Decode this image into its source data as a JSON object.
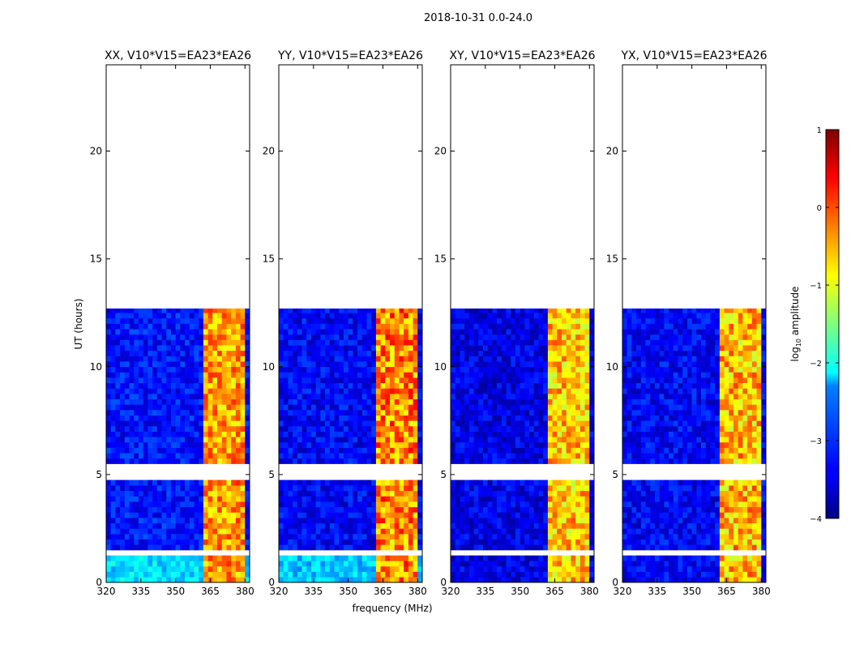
{
  "chart_data": {
    "type": "heatmap",
    "suptitle": "2018-10-31 0.0-24.0",
    "xlabel": "frequency (MHz)",
    "ylabel": "UT (hours)",
    "xlim": [
      320,
      382
    ],
    "ylim": [
      0,
      24
    ],
    "x_ticks": [
      320,
      335,
      350,
      365,
      380
    ],
    "y_ticks": [
      0,
      5,
      10,
      15,
      20
    ],
    "data_time_range_hours": [
      0.0,
      12.7
    ],
    "flagged_time_gaps_hours": [
      [
        1.2,
        1.6
      ],
      [
        4.8,
        5.5
      ]
    ],
    "panels": [
      {
        "title": "XX, V10*V15=EA23*EA26",
        "polarization": "XX",
        "baseline": "V10*V15=EA23*EA26",
        "background_log10_amp": -3.3,
        "band_log10_amp": [
          -1.0,
          0.2
        ],
        "band_mhz": [
          362,
          380
        ]
      },
      {
        "title": "YY, V10*V15=EA23*EA26",
        "polarization": "YY",
        "baseline": "V10*V15=EA23*EA26",
        "background_log10_amp": -3.4,
        "band_log10_amp": [
          -1.0,
          0.4
        ],
        "band_mhz": [
          362,
          380
        ]
      },
      {
        "title": "XY, V10*V15=EA23*EA26",
        "polarization": "XY",
        "baseline": "V10*V15=EA23*EA26",
        "background_log10_amp": -3.5,
        "band_log10_amp": [
          -1.2,
          0.0
        ],
        "band_mhz": [
          362,
          380
        ]
      },
      {
        "title": "YX, V10*V15=EA23*EA26",
        "polarization": "YX",
        "baseline": "V10*V15=EA23*EA26",
        "background_log10_amp": -3.4,
        "band_log10_amp": [
          -1.2,
          0.1
        ],
        "band_mhz": [
          362,
          380
        ]
      }
    ],
    "colorbar": {
      "label": "log",
      "label_sub": "10",
      "label_suffix": " amplitude",
      "min": -4,
      "max": 1,
      "ticks": [
        1,
        0,
        -1,
        -2,
        -3,
        -4
      ],
      "tick_labels": [
        "1",
        "0",
        "−1",
        "−2",
        "−3",
        "−4"
      ],
      "colormap": "jet"
    }
  }
}
